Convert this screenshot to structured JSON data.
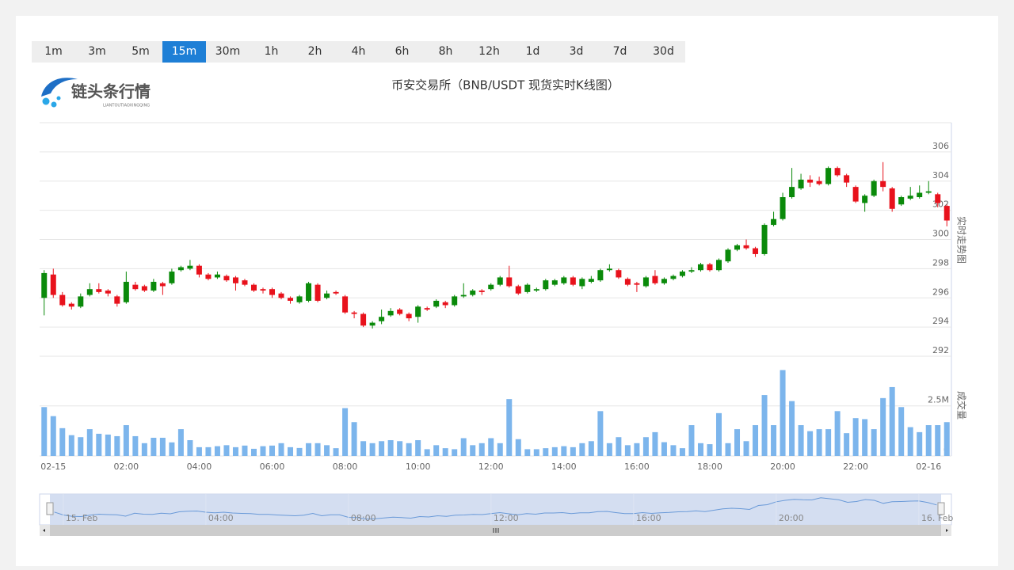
{
  "buttons": [
    "1m",
    "3m",
    "5m",
    "15m",
    "30m",
    "1h",
    "2h",
    "4h",
    "6h",
    "8h",
    "12h",
    "1d",
    "3d",
    "7d",
    "30d"
  ],
  "active": "15m",
  "logo": {
    "name": "链头条行情",
    "pinyin": "LIANTOUTIAOXINGQING"
  },
  "navigator": {
    "labels": [
      "15. Feb",
      "04:00",
      "08:00",
      "12:00",
      "16:00",
      "20:00",
      "16. Feb"
    ]
  },
  "chart_data": {
    "type": "candlestick",
    "title": "币安交易所（BNB/USDT 现货实时K线图）",
    "y_label": "实时走势图",
    "grid": true,
    "up_color": "#0a8a0a",
    "down_color": "#e8121c",
    "categories": [
      null,
      "02-15",
      null,
      null,
      null,
      null,
      null,
      null,
      null,
      "02:00",
      null,
      null,
      null,
      null,
      null,
      null,
      null,
      "04:00",
      null,
      null,
      null,
      null,
      null,
      null,
      null,
      "06:00",
      null,
      null,
      null,
      null,
      null,
      null,
      null,
      "08:00",
      null,
      null,
      null,
      null,
      null,
      null,
      null,
      "10:00",
      null,
      null,
      null,
      null,
      null,
      null,
      null,
      "12:00",
      null,
      null,
      null,
      null,
      null,
      null,
      null,
      "14:00",
      null,
      null,
      null,
      null,
      null,
      null,
      null,
      "16:00",
      null,
      null,
      null,
      null,
      null,
      null,
      null,
      "18:00",
      null,
      null,
      null,
      null,
      null,
      null,
      null,
      "20:00",
      null,
      null,
      null,
      null,
      null,
      null,
      null,
      "22:00",
      null,
      null,
      null,
      null,
      null,
      null,
      null,
      "02-16",
      null,
      null
    ],
    "open": [
      296.0,
      297.6,
      296.2,
      295.6,
      295.4,
      296.2,
      296.6,
      296.5,
      296.1,
      295.7,
      296.9,
      296.8,
      296.5,
      297.0,
      297.0,
      297.9,
      298.0,
      298.2,
      297.6,
      297.4,
      297.5,
      297.4,
      297.2,
      296.9,
      296.6,
      296.6,
      296.3,
      296.0,
      295.7,
      295.8,
      296.9,
      296.0,
      296.4,
      296.1,
      295.0,
      294.9,
      294.1,
      294.4,
      294.8,
      295.2,
      294.9,
      294.7,
      295.3,
      295.4,
      295.7,
      295.5,
      296.1,
      296.2,
      296.5,
      296.6,
      296.9,
      297.4,
      296.8,
      296.4,
      296.5,
      296.6,
      296.9,
      297.0,
      297.4,
      296.8,
      297.1,
      297.2,
      297.9,
      297.9,
      297.3,
      297.0,
      296.8,
      297.5,
      297.0,
      297.3,
      297.5,
      297.8,
      297.9,
      298.3,
      297.9,
      298.5,
      299.3,
      299.6,
      299.4,
      299.0,
      301.0,
      301.4,
      302.9,
      303.5,
      304.1,
      304.0,
      303.8,
      304.9,
      304.4,
      303.6,
      302.5,
      303.0,
      304.0,
      303.5,
      302.4,
      302.8,
      302.9,
      303.2,
      303.1,
      302.3
    ],
    "high": [
      297.9,
      298.0,
      296.4,
      295.7,
      296.3,
      297.0,
      297.0,
      296.6,
      296.2,
      297.8,
      297.1,
      296.9,
      297.3,
      297.1,
      298.0,
      298.2,
      298.6,
      298.3,
      297.7,
      297.8,
      297.6,
      297.5,
      297.3,
      297.0,
      296.7,
      296.7,
      296.4,
      296.1,
      296.2,
      297.1,
      297.0,
      296.5,
      296.5,
      296.2,
      295.1,
      295.0,
      294.4,
      295.2,
      295.3,
      295.3,
      295.0,
      295.5,
      295.4,
      295.9,
      295.8,
      296.2,
      297.0,
      296.6,
      296.6,
      297.0,
      297.5,
      298.2,
      296.9,
      297.0,
      296.7,
      297.3,
      297.3,
      297.5,
      297.5,
      297.4,
      297.5,
      298.0,
      298.3,
      298.0,
      297.4,
      297.1,
      297.5,
      297.9,
      297.4,
      297.6,
      297.9,
      298.1,
      298.4,
      298.4,
      298.7,
      299.4,
      299.7,
      300.0,
      299.5,
      301.1,
      301.9,
      303.2,
      304.9,
      304.5,
      304.4,
      304.3,
      305.0,
      305.0,
      304.5,
      303.7,
      303.1,
      304.1,
      305.3,
      303.6,
      303.0,
      303.6,
      303.7,
      304.0,
      303.2,
      302.4
    ],
    "low": [
      294.8,
      296.0,
      295.4,
      295.2,
      295.3,
      296.1,
      296.3,
      296.1,
      295.4,
      295.6,
      296.5,
      296.4,
      296.4,
      296.2,
      296.9,
      297.8,
      297.9,
      297.4,
      297.2,
      297.3,
      297.1,
      296.5,
      296.8,
      296.4,
      296.3,
      296.0,
      295.9,
      295.6,
      295.6,
      295.7,
      295.7,
      295.9,
      296.2,
      294.9,
      294.6,
      294.0,
      293.9,
      294.2,
      294.7,
      294.8,
      294.4,
      294.3,
      295.1,
      295.3,
      295.3,
      295.4,
      296.0,
      296.1,
      296.2,
      296.5,
      296.8,
      296.7,
      296.2,
      296.3,
      296.4,
      296.5,
      296.8,
      296.9,
      296.8,
      296.6,
      297.0,
      297.1,
      297.8,
      297.3,
      296.8,
      296.4,
      296.7,
      296.9,
      296.9,
      297.2,
      297.4,
      297.7,
      297.8,
      297.8,
      297.8,
      298.4,
      299.2,
      299.3,
      298.8,
      298.9,
      300.9,
      301.3,
      302.8,
      303.4,
      303.6,
      303.7,
      303.7,
      304.3,
      303.6,
      302.5,
      301.9,
      302.9,
      303.3,
      301.9,
      302.3,
      302.7,
      302.8,
      303.1,
      302.2,
      300.9
    ],
    "close": [
      297.7,
      296.2,
      295.5,
      295.4,
      296.1,
      296.6,
      296.4,
      296.3,
      295.6,
      297.1,
      296.6,
      296.5,
      297.1,
      296.8,
      297.8,
      298.1,
      298.2,
      297.6,
      297.3,
      297.6,
      297.2,
      297.0,
      296.9,
      296.5,
      296.5,
      296.2,
      296.0,
      295.8,
      296.1,
      297.0,
      295.8,
      296.3,
      296.3,
      295.0,
      294.9,
      294.1,
      294.3,
      294.7,
      295.1,
      294.9,
      294.6,
      295.4,
      295.2,
      295.8,
      295.5,
      296.1,
      296.2,
      296.5,
      296.4,
      296.9,
      297.4,
      296.8,
      296.3,
      296.9,
      296.6,
      297.2,
      297.2,
      297.4,
      296.9,
      297.3,
      297.3,
      297.9,
      298.0,
      297.4,
      296.9,
      296.9,
      297.4,
      297.0,
      297.3,
      297.5,
      297.8,
      297.9,
      298.3,
      297.9,
      298.6,
      299.3,
      299.6,
      299.4,
      299.0,
      301.0,
      301.4,
      302.9,
      303.6,
      304.1,
      303.9,
      303.8,
      304.9,
      304.4,
      303.9,
      302.6,
      303.0,
      304.0,
      303.6,
      302.1,
      302.9,
      303.0,
      303.2,
      303.3,
      302.5,
      301.3
    ],
    "ylim": [
      292,
      308
    ],
    "yticks": [
      292,
      294,
      296,
      298,
      300,
      302,
      304,
      306
    ],
    "volume": {
      "y_label": "成交量",
      "color": "#7cb5ec",
      "values": [
        2440000,
        1990000,
        1390000,
        1040000,
        940000,
        1340000,
        1110000,
        1070000,
        990000,
        1540000,
        990000,
        640000,
        910000,
        910000,
        680000,
        1340000,
        790000,
        440000,
        440000,
        490000,
        540000,
        440000,
        520000,
        360000,
        490000,
        520000,
        640000,
        440000,
        400000,
        640000,
        640000,
        540000,
        390000,
        2390000,
        1690000,
        740000,
        640000,
        740000,
        790000,
        740000,
        640000,
        790000,
        340000,
        540000,
        390000,
        340000,
        890000,
        540000,
        640000,
        890000,
        640000,
        2840000,
        840000,
        340000,
        340000,
        390000,
        440000,
        490000,
        440000,
        640000,
        740000,
        2240000,
        640000,
        940000,
        540000,
        640000,
        940000,
        1190000,
        690000,
        540000,
        390000,
        1540000,
        640000,
        590000,
        2140000,
        640000,
        1340000,
        740000,
        1540000,
        3040000,
        1540000,
        4290000,
        2740000,
        1540000,
        1240000,
        1340000,
        1340000,
        2240000,
        1140000,
        1890000,
        1840000,
        1340000,
        2890000,
        3440000,
        2440000,
        1440000,
        1190000,
        1540000,
        1540000,
        1690000
      ],
      "ylim": [
        0,
        4900000
      ],
      "yticks": [
        0,
        {
          "value": 2500000,
          "label": "2.5M"
        }
      ]
    }
  }
}
